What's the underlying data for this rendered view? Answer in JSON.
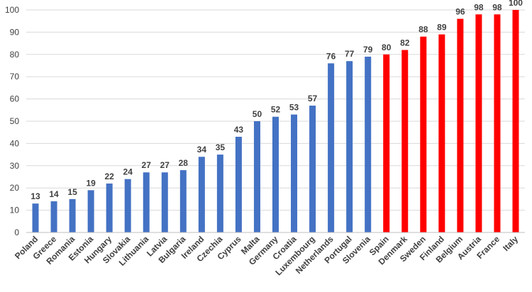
{
  "chart_data": {
    "type": "bar",
    "title": "",
    "xlabel": "",
    "ylabel": "",
    "ylim": [
      0,
      100
    ],
    "yticks": [
      0,
      10,
      20,
      30,
      40,
      50,
      60,
      70,
      80,
      90,
      100
    ],
    "grid": true,
    "categories": [
      "Poland",
      "Greece",
      "Romania",
      "Estonia",
      "Hungary",
      "Slovakia",
      "Lithuania",
      "Latvia",
      "Bulgaria",
      "Ireland",
      "Czechia",
      "Cyprus",
      "Malta",
      "Germany",
      "Croatia",
      "Luxembourg",
      "Netherlands",
      "Portugal",
      "Slovenia",
      "Spain",
      "Denmark",
      "Sweden",
      "Finland",
      "Belgium",
      "Austria",
      "France",
      "Italy"
    ],
    "values": [
      13,
      14,
      15,
      19,
      22,
      24,
      27,
      27,
      28,
      34,
      35,
      43,
      50,
      52,
      53,
      57,
      76,
      77,
      79,
      80,
      82,
      88,
      89,
      96,
      98,
      98,
      100
    ],
    "data_labels": [
      "13",
      "14",
      "15",
      "19",
      "22",
      "24",
      "27",
      "27",
      "28",
      "34",
      "35",
      "43",
      "50",
      "52",
      "53",
      "57",
      "76",
      "77",
      "79",
      "80",
      "82",
      "88",
      "89",
      "96",
      "98",
      "98",
      "100"
    ],
    "bar_groups": [
      "blue",
      "blue",
      "blue",
      "blue",
      "blue",
      "blue",
      "blue",
      "blue",
      "blue",
      "blue",
      "blue",
      "blue",
      "blue",
      "blue",
      "blue",
      "blue",
      "blue",
      "blue",
      "blue",
      "red",
      "red",
      "red",
      "red",
      "red",
      "red",
      "red",
      "red"
    ],
    "colors": {
      "blue": "#4472c4",
      "red": "#ff0000"
    }
  }
}
